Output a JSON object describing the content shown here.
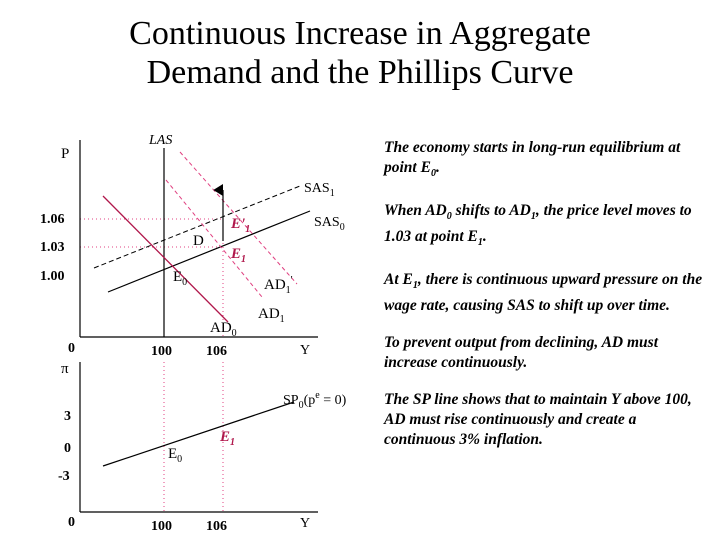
{
  "title": {
    "line1": "Continuous Increase in Aggregate",
    "line2": "Demand and the Phillips Curve"
  },
  "colors": {
    "ad": "#b0174b",
    "grid": "#e04080",
    "dashed": "#000000",
    "axis": "#000000"
  },
  "upper_graph": {
    "y_axis_label": "P",
    "x_axis_label": "Y",
    "origin_label": "0",
    "price_labels": [
      "1.06",
      "1.03",
      "1.00"
    ],
    "output_labels": [
      "100",
      "106"
    ],
    "las_label": "LAS",
    "sas1_label": "SAS",
    "sas1_sub": "1",
    "sas0_label": "SAS",
    "sas0_sub": "0",
    "ad0_label": "AD",
    "ad0_sub": "0",
    "ad1_label": "AD",
    "ad1_sub": "1",
    "ad1p_label": "AD",
    "ad1p_sub": "1",
    "ad1p_mark": "'",
    "e0_label": "E",
    "e0_sub": "0",
    "e1_label": "E",
    "e1_sub": "1",
    "e1p_label": "E'",
    "e1p_sub": "1",
    "d_label": "D"
  },
  "lower_graph": {
    "y_axis_label": "π",
    "x_axis_label": "Y",
    "origin_label": "0",
    "inflation_labels": [
      "3",
      "0",
      "-3"
    ],
    "output_labels": [
      "100",
      "106"
    ],
    "sp_label_pre": "SP",
    "sp_sub": "0",
    "sp_label_mid": "(p",
    "sp_sup": "e",
    "sp_label_post": " = 0)",
    "e0_label": "E",
    "e0_sub": "0",
    "e1_label": "E",
    "e1_sub": "1"
  },
  "notes": {
    "p1a": "The economy starts in long-run equilibrium at point E",
    "p1sub": "0",
    "p1b": ".",
    "p2a": "When AD",
    "p2sub1": "0",
    "p2b": " shifts to AD",
    "p2sub2": "1",
    "p2c": ", the price level moves to 1.03 at point E",
    "p2sub3": "1",
    "p2d": ".",
    "p3a": "At E",
    "p3sub": "1",
    "p3b": ", there is continuous upward pressure on the wage rate, causing SAS to shift up over time.",
    "p4": "To prevent output from declining, AD must increase continuously.",
    "p5": "The SP line shows that to maintain Y above 100, AD must rise continuously and create a continuous 3% inflation."
  }
}
